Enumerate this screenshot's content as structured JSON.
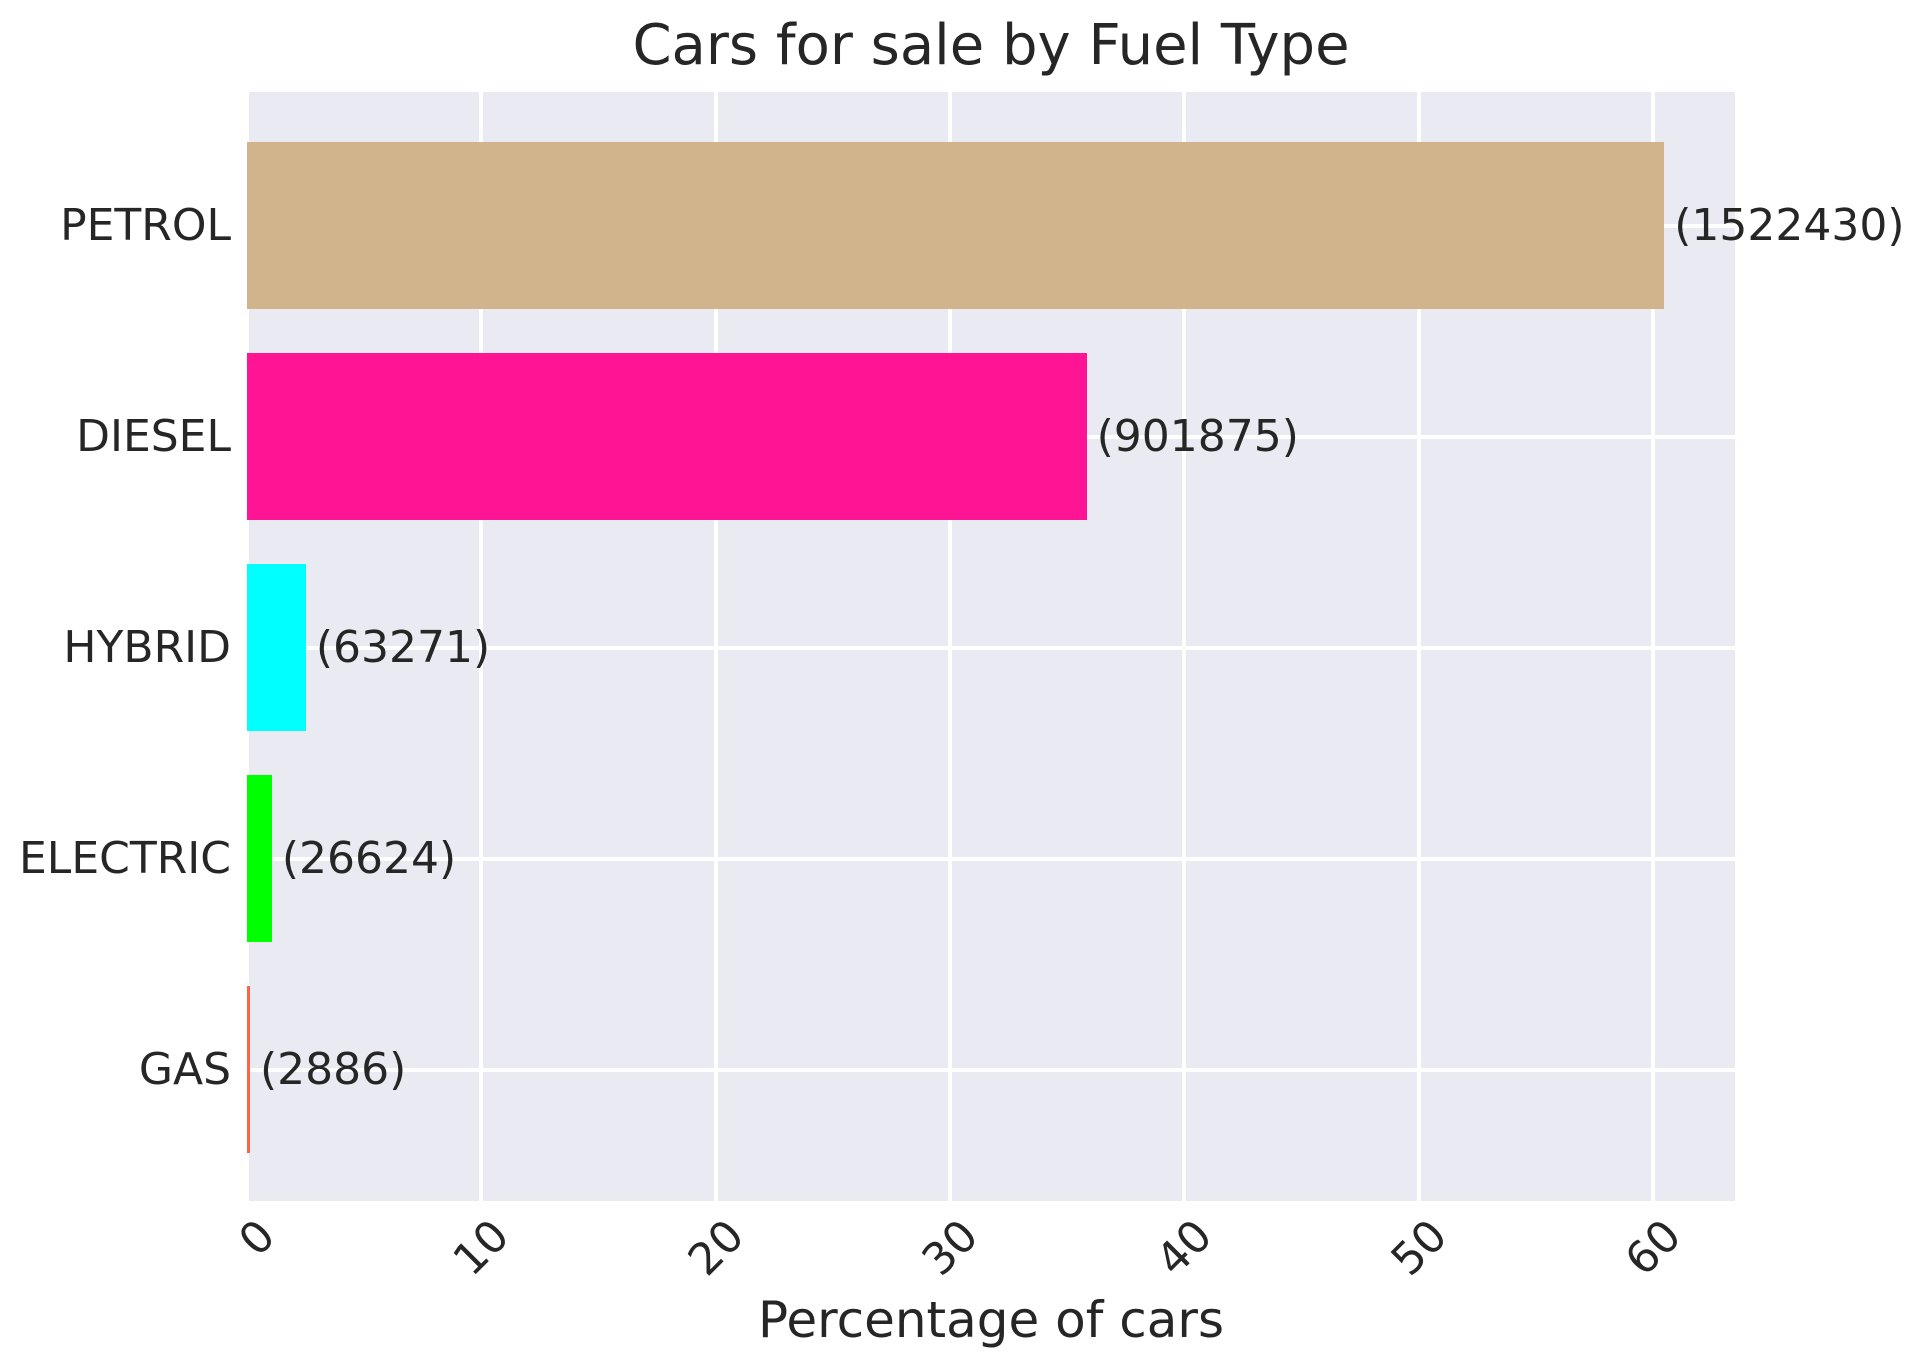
{
  "chart_data": {
    "type": "bar",
    "orientation": "horizontal",
    "title": "Cars for sale by Fuel Type",
    "xlabel": "Percentage of cars",
    "categories": [
      "PETROL",
      "DIESEL",
      "HYBRID",
      "ELECTRIC",
      "GAS"
    ],
    "values_percent": [
      60.48,
      35.83,
      2.51,
      1.06,
      0.11
    ],
    "counts": [
      1522430,
      901875,
      63271,
      26624,
      2886
    ],
    "annotations": [
      "(1522430)",
      "(901875)",
      "(63271)",
      "(26624)",
      "(2886)"
    ],
    "bar_colors": [
      "#d2b48c",
      "#ff1493",
      "#00ffff",
      "#00ff00",
      "#ff6347"
    ],
    "xticks": [
      0,
      10,
      20,
      30,
      40,
      50,
      60
    ],
    "xtick_labels": [
      "0",
      "10",
      "20",
      "30",
      "40",
      "50",
      "60"
    ],
    "xlim": [
      0,
      63.5
    ],
    "grid": true,
    "legend": false,
    "plot_bg_color": "#eaeaf2",
    "grid_color": "#ffffff",
    "text_color": "#262626"
  }
}
